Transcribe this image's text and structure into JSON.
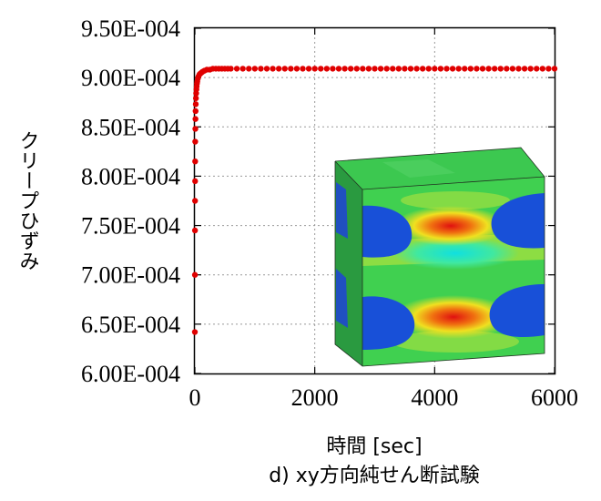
{
  "chart_data": {
    "type": "scatter",
    "caption": "d) xy方向純せん断試験",
    "xlabel": "時間 [sec]",
    "ylabel": "クリープひずみ",
    "xlim": [
      0,
      6000
    ],
    "ylim": [
      0.0006,
      0.00095
    ],
    "x_ticks": [
      "0",
      "2000",
      "4000",
      "6000"
    ],
    "y_ticks": [
      "6.00E-004",
      "6.50E-004",
      "7.00E-004",
      "7.50E-004",
      "8.00E-004",
      "8.50E-004",
      "9.00E-004",
      "9.50E-004"
    ],
    "x_tick_values": [
      0,
      2000,
      4000,
      6000
    ],
    "y_tick_values": [
      0.0006,
      0.00065,
      0.0007,
      0.00075,
      0.0008,
      0.00085,
      0.0009,
      0.00095
    ],
    "grid": true,
    "marker_color": "#e00000",
    "series": [
      {
        "x": [
          0,
          1,
          2,
          3,
          4,
          5,
          6,
          8,
          10,
          12,
          15,
          18,
          22,
          26,
          30,
          35,
          40,
          50,
          60,
          75,
          90,
          110,
          130,
          160,
          200,
          250,
          300,
          350,
          400,
          450,
          500,
          550,
          600,
          700,
          800,
          900,
          1000,
          1100,
          1200,
          1300,
          1400,
          1500,
          1600,
          1700,
          1800,
          1900,
          2000,
          2100,
          2200,
          2300,
          2400,
          2500,
          2600,
          2700,
          2800,
          2900,
          3000,
          3100,
          3200,
          3300,
          3400,
          3500,
          3600,
          3700,
          3800,
          3900,
          4000,
          4100,
          4200,
          4300,
          4400,
          4500,
          4600,
          4700,
          4800,
          4900,
          5000,
          5100,
          5200,
          5300,
          5400,
          5500,
          5600,
          5700,
          5800,
          5900,
          6000
        ],
        "y": [
          0.000642,
          0.0007,
          0.000745,
          0.000775,
          0.000795,
          0.000815,
          0.000835,
          0.000848,
          0.000858,
          0.000866,
          0.000873,
          0.000879,
          0.000884,
          0.000888,
          0.000891,
          0.000894,
          0.000896,
          0.000899,
          0.000901,
          0.000903,
          0.000904,
          0.000905,
          0.000906,
          0.000907,
          0.000908,
          0.000908,
          0.000909,
          0.000909,
          0.000909,
          0.000909,
          0.000909,
          0.000909,
          0.000909,
          0.000909,
          0.000909,
          0.000909,
          0.000909,
          0.000909,
          0.000909,
          0.000909,
          0.000909,
          0.000909,
          0.000909,
          0.000909,
          0.000909,
          0.000909,
          0.000909,
          0.000909,
          0.000909,
          0.000909,
          0.000909,
          0.000909,
          0.000909,
          0.000909,
          0.000909,
          0.000909,
          0.000909,
          0.000909,
          0.000909,
          0.000909,
          0.000909,
          0.000909,
          0.000909,
          0.000909,
          0.000909,
          0.000909,
          0.000909,
          0.000909,
          0.000909,
          0.000909,
          0.000909,
          0.000909,
          0.000909,
          0.000909,
          0.000909,
          0.000909,
          0.000909,
          0.000909,
          0.000909,
          0.000909,
          0.000909,
          0.000909,
          0.000909,
          0.000909,
          0.000909,
          0.000909,
          0.000909
        ]
      }
    ]
  }
}
